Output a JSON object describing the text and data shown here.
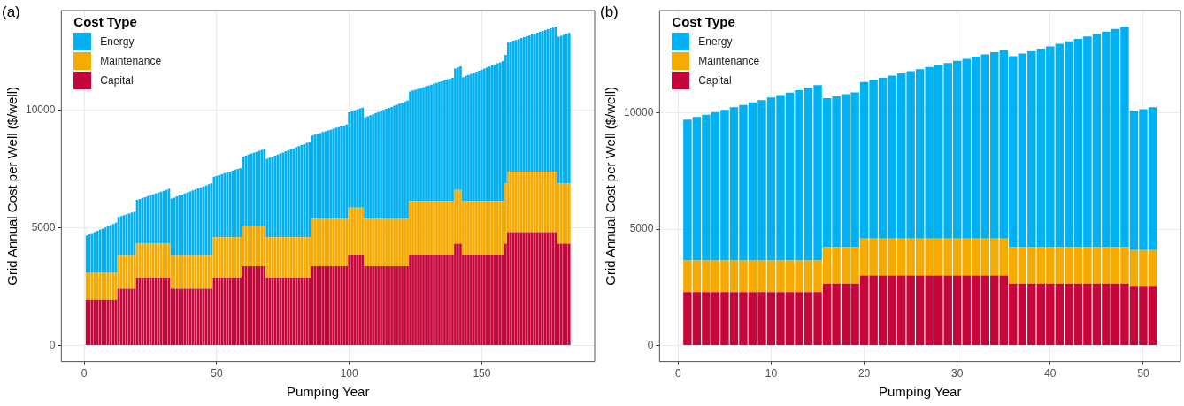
{
  "chart_data": [
    {
      "type": "bar",
      "stacked": true,
      "title": "(a)",
      "xlabel": "Pumping Year",
      "ylabel": "Grid Annual Cost per Well ($/well)",
      "legend_title": "Cost Type",
      "legend": "top left",
      "grid": true,
      "x": [
        1,
        2,
        3,
        4,
        5,
        6,
        7,
        8,
        9,
        10,
        11,
        12,
        13,
        14,
        15,
        16,
        17,
        18,
        19,
        20,
        21,
        22,
        23,
        24,
        25,
        26,
        27,
        28,
        29,
        30,
        31,
        32,
        33,
        34,
        35,
        36,
        37,
        38,
        39,
        40,
        41,
        42,
        43,
        44,
        45,
        46,
        47,
        48,
        49,
        50,
        51,
        52,
        53,
        54,
        55,
        56,
        57,
        58,
        59,
        60,
        61,
        62,
        63,
        64,
        65,
        66,
        67,
        68,
        69,
        70,
        71,
        72,
        73,
        74,
        75,
        76,
        77,
        78,
        79,
        80,
        81,
        82,
        83,
        84,
        85,
        86,
        87,
        88,
        89,
        90,
        91,
        92,
        93,
        94,
        95,
        96,
        97,
        98,
        99,
        100,
        101,
        102,
        103,
        104,
        105,
        106,
        107,
        108,
        109,
        110,
        111,
        112,
        113,
        114,
        115,
        116,
        117,
        118,
        119,
        120,
        121,
        122,
        123,
        124,
        125,
        126,
        127,
        128,
        129,
        130,
        131,
        132,
        133,
        134,
        135,
        136,
        137,
        138,
        139,
        140,
        141,
        142,
        143,
        144,
        145,
        146,
        147,
        148,
        149,
        150,
        151,
        152,
        153,
        154,
        155,
        156,
        157,
        158,
        159,
        160,
        161,
        162,
        163,
        164,
        165,
        166,
        167,
        168,
        169,
        170,
        171,
        172,
        173,
        174,
        175,
        176,
        177,
        178,
        179,
        180,
        181,
        182,
        183
      ],
      "xlim": [
        -8.6,
        192.6
      ],
      "xticks": [
        0,
        50,
        100,
        150
      ],
      "ylim": [
        -680,
        14250
      ],
      "yticks": [
        0,
        5000,
        10000
      ],
      "series": [
        {
          "name": "Capital",
          "color": "#c4063a",
          "values": [
            1950,
            1950,
            1950,
            1950,
            1950,
            1950,
            1950,
            1950,
            1950,
            1950,
            1950,
            1950,
            2410,
            2410,
            2410,
            2410,
            2410,
            2410,
            2410,
            2880,
            2880,
            2880,
            2880,
            2880,
            2880,
            2880,
            2880,
            2880,
            2880,
            2880,
            2880,
            2880,
            2410,
            2410,
            2410,
            2410,
            2410,
            2410,
            2410,
            2410,
            2410,
            2410,
            2410,
            2410,
            2410,
            2410,
            2410,
            2410,
            2880,
            2880,
            2880,
            2880,
            2880,
            2880,
            2880,
            2880,
            2880,
            2880,
            2880,
            3370,
            3370,
            3370,
            3370,
            3370,
            3370,
            3370,
            3370,
            3370,
            2880,
            2880,
            2880,
            2880,
            2880,
            2880,
            2880,
            2880,
            2880,
            2880,
            2880,
            2880,
            2880,
            2880,
            2880,
            2880,
            2880,
            3370,
            3370,
            3370,
            3370,
            3370,
            3370,
            3370,
            3370,
            3370,
            3370,
            3370,
            3370,
            3370,
            3370,
            3860,
            3860,
            3860,
            3860,
            3860,
            3860,
            3370,
            3370,
            3370,
            3370,
            3370,
            3370,
            3370,
            3370,
            3370,
            3370,
            3370,
            3370,
            3370,
            3370,
            3370,
            3370,
            3370,
            3860,
            3860,
            3860,
            3860,
            3860,
            3860,
            3860,
            3860,
            3860,
            3860,
            3860,
            3860,
            3860,
            3860,
            3860,
            3860,
            3860,
            4330,
            4330,
            4330,
            3860,
            3860,
            3860,
            3860,
            3860,
            3860,
            3860,
            3860,
            3860,
            3860,
            3860,
            3860,
            3860,
            3860,
            3860,
            3860,
            4330,
            4820,
            4820,
            4820,
            4820,
            4820,
            4820,
            4820,
            4820,
            4820,
            4820,
            4820,
            4820,
            4820,
            4820,
            4820,
            4820,
            4820,
            4820,
            4820,
            4330,
            4330,
            4330,
            4330,
            4330
          ]
        },
        {
          "name": "Maintenance",
          "color": "#f4aa00",
          "values": [
            1140,
            1140,
            1140,
            1140,
            1140,
            1140,
            1140,
            1140,
            1140,
            1140,
            1140,
            1140,
            1430,
            1430,
            1430,
            1430,
            1430,
            1430,
            1430,
            1450,
            1450,
            1450,
            1450,
            1450,
            1450,
            1450,
            1450,
            1450,
            1450,
            1450,
            1450,
            1450,
            1430,
            1430,
            1430,
            1430,
            1430,
            1430,
            1430,
            1430,
            1430,
            1430,
            1430,
            1430,
            1430,
            1430,
            1430,
            1430,
            1720,
            1720,
            1720,
            1720,
            1720,
            1720,
            1720,
            1720,
            1720,
            1720,
            1720,
            1730,
            1730,
            1730,
            1730,
            1730,
            1730,
            1730,
            1730,
            1730,
            1720,
            1720,
            1720,
            1720,
            1720,
            1720,
            1720,
            1720,
            1720,
            1720,
            1720,
            1720,
            1720,
            1720,
            1720,
            1720,
            1720,
            2010,
            2010,
            2010,
            2010,
            2010,
            2010,
            2010,
            2010,
            2010,
            2010,
            2010,
            2010,
            2010,
            2010,
            2000,
            2000,
            2000,
            2000,
            2000,
            2000,
            2010,
            2010,
            2010,
            2010,
            2010,
            2010,
            2010,
            2010,
            2010,
            2010,
            2010,
            2010,
            2010,
            2010,
            2010,
            2010,
            2010,
            2290,
            2290,
            2290,
            2290,
            2290,
            2290,
            2290,
            2290,
            2290,
            2290,
            2290,
            2290,
            2290,
            2290,
            2290,
            2290,
            2290,
            2290,
            2290,
            2290,
            2290,
            2290,
            2290,
            2290,
            2290,
            2290,
            2290,
            2290,
            2290,
            2290,
            2290,
            2290,
            2290,
            2290,
            2290,
            2290,
            2570,
            2580,
            2580,
            2580,
            2580,
            2580,
            2580,
            2580,
            2580,
            2580,
            2580,
            2580,
            2580,
            2580,
            2580,
            2580,
            2580,
            2580,
            2580,
            2580,
            2570,
            2570,
            2570,
            2570,
            2570
          ]
        },
        {
          "name": "Energy",
          "color": "#00b0f0",
          "values": [
            1590,
            1640,
            1690,
            1740,
            1790,
            1840,
            1880,
            1930,
            1980,
            2030,
            2080,
            2130,
            1630,
            1670,
            1700,
            1740,
            1780,
            1820,
            1850,
            1860,
            1900,
            1940,
            1980,
            2020,
            2060,
            2100,
            2140,
            2170,
            2210,
            2250,
            2290,
            2330,
            2410,
            2450,
            2500,
            2540,
            2580,
            2630,
            2670,
            2710,
            2760,
            2800,
            2840,
            2890,
            2930,
            2970,
            3020,
            3060,
            2580,
            2620,
            2650,
            2690,
            2730,
            2770,
            2800,
            2840,
            2880,
            2910,
            2950,
            2940,
            2980,
            3020,
            3060,
            3100,
            3140,
            3180,
            3220,
            3260,
            3340,
            3390,
            3430,
            3480,
            3520,
            3570,
            3610,
            3660,
            3700,
            3750,
            3790,
            3840,
            3880,
            3930,
            3970,
            4020,
            4060,
            3550,
            3590,
            3620,
            3660,
            3700,
            3730,
            3770,
            3800,
            3840,
            3880,
            3910,
            3950,
            3980,
            4020,
            4060,
            4100,
            4140,
            4180,
            4220,
            4260,
            4330,
            4370,
            4420,
            4460,
            4510,
            4550,
            4600,
            4640,
            4690,
            4730,
            4770,
            4820,
            4860,
            4910,
            4950,
            5000,
            5040,
            4660,
            4700,
            4730,
            4770,
            4800,
            4840,
            4880,
            4910,
            4950,
            4990,
            5020,
            5060,
            5090,
            5130,
            5170,
            5200,
            5240,
            5160,
            5210,
            5260,
            5270,
            5320,
            5360,
            5410,
            5450,
            5500,
            5540,
            5590,
            5630,
            5680,
            5720,
            5770,
            5810,
            5860,
            5900,
            5950,
            5470,
            5490,
            5530,
            5570,
            5600,
            5640,
            5680,
            5720,
            5760,
            5790,
            5830,
            5870,
            5910,
            5950,
            5980,
            6020,
            6060,
            6100,
            6130,
            6170,
            6240,
            6280,
            6320,
            6360,
            6400
          ]
        }
      ]
    },
    {
      "type": "bar",
      "stacked": true,
      "title": "(b)",
      "xlabel": "Pumping Year",
      "ylabel": "Grid Annual Cost per Well ($/well)",
      "legend_title": "Cost Type",
      "legend": "top left",
      "grid": true,
      "x": [
        1,
        2,
        3,
        4,
        5,
        6,
        7,
        8,
        9,
        10,
        11,
        12,
        13,
        14,
        15,
        16,
        17,
        18,
        19,
        20,
        21,
        22,
        23,
        24,
        25,
        26,
        27,
        28,
        29,
        30,
        31,
        32,
        33,
        34,
        35,
        36,
        37,
        38,
        39,
        40,
        41,
        42,
        43,
        44,
        45,
        46,
        47,
        48,
        49,
        50,
        51
      ],
      "xlim": [
        -2,
        54
      ],
      "xticks": [
        0,
        10,
        20,
        30,
        40,
        50
      ],
      "ylim": [
        -690,
        14400
      ],
      "yticks": [
        0,
        5000,
        10000
      ],
      "series": [
        {
          "name": "Capital",
          "color": "#c4063a",
          "values": [
            2290,
            2290,
            2290,
            2290,
            2290,
            2290,
            2290,
            2290,
            2290,
            2290,
            2290,
            2290,
            2290,
            2290,
            2290,
            2650,
            2650,
            2650,
            2650,
            3000,
            3000,
            3000,
            3000,
            3000,
            3000,
            3000,
            3000,
            3000,
            3000,
            3000,
            3000,
            3000,
            3000,
            3000,
            3000,
            2650,
            2650,
            2650,
            2650,
            2650,
            2650,
            2650,
            2650,
            2650,
            2650,
            2650,
            2650,
            2650,
            2560,
            2560,
            2560
          ]
        },
        {
          "name": "Maintenance",
          "color": "#f4aa00",
          "values": [
            1360,
            1360,
            1360,
            1360,
            1360,
            1360,
            1360,
            1360,
            1360,
            1360,
            1360,
            1360,
            1360,
            1360,
            1360,
            1580,
            1580,
            1580,
            1580,
            1590,
            1590,
            1590,
            1590,
            1590,
            1590,
            1590,
            1590,
            1590,
            1590,
            1590,
            1590,
            1590,
            1590,
            1590,
            1590,
            1580,
            1580,
            1580,
            1580,
            1580,
            1580,
            1580,
            1580,
            1580,
            1580,
            1580,
            1580,
            1580,
            1540,
            1540,
            1540
          ]
        },
        {
          "name": "Energy",
          "color": "#00b0f0",
          "values": [
            6060,
            6170,
            6270,
            6380,
            6480,
            6590,
            6690,
            6800,
            6900,
            7010,
            7120,
            7220,
            7330,
            7430,
            7540,
            6400,
            6480,
            6570,
            6650,
            6740,
            6830,
            6920,
            7010,
            7110,
            7200,
            7290,
            7380,
            7470,
            7560,
            7650,
            7740,
            7830,
            7930,
            8020,
            8110,
            8210,
            8320,
            8420,
            8530,
            8630,
            8740,
            8850,
            8950,
            9060,
            9160,
            9270,
            9380,
            9480,
            6000,
            6060,
            6140
          ]
        }
      ]
    }
  ]
}
